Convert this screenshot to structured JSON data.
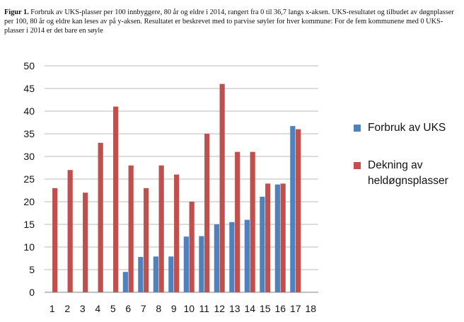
{
  "caption": {
    "label": "Figur 1.",
    "text": "Forbruk av UKS-plasser per 100 innbyggere, 80 år og eldre i 2014, rangert fra 0 til 36,7 langs x-aksen.  UKS-resultatet og tilbudet av døgnplasser per 100, 80 år og eldre kan leses av på y-aksen.  Resultatet er beskrevet med to parvise søyler for hver kommune: For de fem kommunene med 0 UKS-plasser i 2014 er det bare en søyle"
  },
  "chart_data": {
    "type": "bar",
    "title": "",
    "xlabel": "",
    "ylabel": "",
    "categories": [
      "1",
      "2",
      "3",
      "4",
      "5",
      "6",
      "7",
      "8",
      "9",
      "10",
      "11",
      "12",
      "13",
      "14",
      "15",
      "16",
      "17",
      "18"
    ],
    "ylim": [
      0,
      50
    ],
    "yticks": [
      0,
      5,
      10,
      15,
      20,
      25,
      30,
      35,
      40,
      45,
      50
    ],
    "grid": true,
    "legend_position": "right",
    "series": [
      {
        "name": "Forbruk av UKS",
        "color": "#4f81bd",
        "values": [
          null,
          null,
          null,
          null,
          null,
          4.5,
          7.8,
          7.9,
          7.9,
          12.3,
          12.4,
          15,
          15.5,
          16,
          21.1,
          23.8,
          36.7,
          null
        ]
      },
      {
        "name": "Dekning av heldøgnsplasser",
        "color": "#c0504d",
        "values": [
          23,
          27,
          22,
          33,
          41,
          28,
          23,
          28,
          26,
          20,
          35,
          46,
          31,
          31,
          24,
          24,
          36,
          null
        ]
      }
    ]
  }
}
